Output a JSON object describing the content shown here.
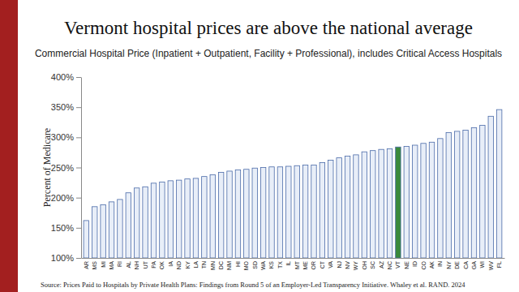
{
  "chart_data": {
    "type": "bar",
    "title": "Vermont hospital prices are above the national average",
    "subtitle": "Commercial Hospital Price (Inpatient + Outpatient, Facility + Professional), includes Critical Access Hospitals",
    "y_label": "Percent of Medicare",
    "source": "Source: Prices Paid to Hospitals by Private Health Plans: Findings from Round 5 of an Employer-Led Transparency Initiative. Whaley et al. RAND. 2024",
    "categories": [
      "AR",
      "MS",
      "MI",
      "MA",
      "RI",
      "AL",
      "NH",
      "UT",
      "PA",
      "OK",
      "IA",
      "ND",
      "KY",
      "LA",
      "TN",
      "MN",
      "DC",
      "NM",
      "HI",
      "MO",
      "SD",
      "WA",
      "KS",
      "TX",
      "IL",
      "MT",
      "ME",
      "OR",
      "CT",
      "VA",
      "NJ",
      "NV",
      "WY",
      "OH",
      "SC",
      "AZ",
      "NC",
      "VT",
      "NE",
      "ID",
      "CO",
      "AK",
      "IN",
      "NY",
      "DE",
      "CA",
      "GA",
      "WI",
      "WV",
      "FL"
    ],
    "values": [
      162,
      185,
      188,
      193,
      197,
      208,
      216,
      218,
      224,
      226,
      228,
      229,
      231,
      232,
      235,
      238,
      242,
      244,
      246,
      247,
      249,
      250,
      251,
      251,
      252,
      253,
      254,
      254,
      258,
      262,
      266,
      269,
      271,
      276,
      278,
      280,
      281,
      284,
      285,
      287,
      290,
      292,
      298,
      308,
      310,
      312,
      316,
      320,
      335,
      346
    ],
    "colors": [
      "#e8eef8",
      "#e8eef8",
      "#e8eef8",
      "#e8eef8",
      "#e8eef8",
      "#e8eef8",
      "#e8eef8",
      "#e8eef8",
      "#e8eef8",
      "#e8eef8",
      "#e8eef8",
      "#e8eef8",
      "#e8eef8",
      "#e8eef8",
      "#e8eef8",
      "#e8eef8",
      "#e8eef8",
      "#e8eef8",
      "#e8eef8",
      "#e8eef8",
      "#e8eef8",
      "#e8eef8",
      "#e8eef8",
      "#e8eef8",
      "#e8eef8",
      "#e8eef8",
      "#e8eef8",
      "#e8eef8",
      "#e8eef8",
      "#e8eef8",
      "#e8eef8",
      "#e8eef8",
      "#e8eef8",
      "#e8eef8",
      "#e8eef8",
      "#e8eef8",
      "#e8eef8",
      "#3a8a3a",
      "#e8eef8",
      "#e8eef8",
      "#e8eef8",
      "#e8eef8",
      "#e8eef8",
      "#e8eef8",
      "#e8eef8",
      "#e8eef8",
      "#e8eef8",
      "#e8eef8",
      "#e8eef8",
      "#e8eef8"
    ],
    "ylim": [
      100,
      400
    ],
    "yticks": [
      {
        "value": 100,
        "label": "100%"
      },
      {
        "value": 150,
        "label": "150%"
      },
      {
        "value": 200,
        "label": "200%"
      },
      {
        "value": 250,
        "label": "250%"
      },
      {
        "value": 300,
        "label": "300%"
      },
      {
        "value": 350,
        "label": "350%"
      },
      {
        "value": 400,
        "label": "400%"
      }
    ],
    "grid": false
  }
}
